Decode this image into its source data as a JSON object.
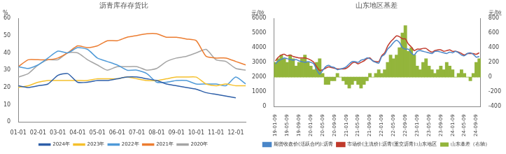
{
  "chart_data": [
    {
      "type": "line",
      "title": "沥青库存存货比",
      "ylabel": "%",
      "categories": [
        "01-01",
        null,
        "02-01",
        null,
        "03-01",
        null,
        "04-01",
        null,
        "05-01",
        null,
        "06-01",
        null,
        "07-01",
        null,
        "08-01",
        null,
        "09-01",
        null,
        "10-01",
        null,
        "11-01",
        null,
        "12-01",
        null
      ],
      "ylim": [
        0,
        60
      ],
      "yticks": [
        0,
        10,
        20,
        30,
        40,
        50,
        60
      ],
      "grid": false,
      "legend": "bottom",
      "series": [
        {
          "name": "2024年",
          "color": "#2e5fa8",
          "values": [
            21,
            20,
            21,
            22,
            27,
            28,
            23,
            23,
            24,
            24,
            25,
            26,
            26,
            25,
            24,
            22,
            21,
            20,
            19,
            17,
            16,
            15,
            14,
            null
          ]
        },
        {
          "name": "2023年",
          "color": "#f5c02c",
          "values": [
            20,
            21,
            23,
            24,
            24,
            24,
            24,
            24,
            25,
            25,
            25,
            26,
            25,
            24,
            24,
            25,
            26,
            26,
            26,
            22,
            21,
            22,
            21,
            21
          ]
        },
        {
          "name": "2022年",
          "color": "#4f9ad8",
          "values": [
            32,
            31,
            33,
            37,
            41,
            40,
            43,
            42,
            37,
            35,
            33,
            30,
            30,
            28,
            23,
            23,
            24,
            24,
            22,
            22,
            22,
            21,
            26,
            22
          ]
        },
        {
          "name": "2021年",
          "color": "#ec7d31",
          "values": [
            32,
            36,
            36,
            36,
            37,
            40,
            44,
            43,
            44,
            47,
            47,
            49,
            50,
            51,
            51,
            49,
            49,
            48,
            47,
            38,
            37,
            37,
            35,
            33
          ]
        },
        {
          "name": "2020年",
          "color": "#a5a5a5",
          "values": [
            26,
            28,
            33,
            36,
            36,
            40,
            40,
            36,
            33,
            30,
            32,
            32,
            32,
            30,
            31,
            35,
            37,
            38,
            40,
            42,
            36,
            35,
            31,
            30
          ]
        }
      ]
    },
    {
      "type": "bar",
      "title": "山东地区基差",
      "ylabel": "元/吨",
      "y2label": "元/吨",
      "categories": [
        "19-01-09",
        null,
        null,
        null,
        "19-05-09",
        null,
        null,
        null,
        "19-09-09",
        null,
        null,
        null,
        "20-01-09",
        null,
        null,
        null,
        "20-05-09",
        null,
        null,
        null,
        "20-09-09",
        null,
        null,
        null,
        "21-01-09",
        null,
        null,
        null,
        "21-05-09",
        null,
        null,
        null,
        "21-09-09",
        null,
        null,
        null,
        "22-01-09",
        null,
        null,
        null,
        "22-05-09",
        null,
        null,
        null,
        "22-09-09",
        null,
        null,
        null,
        "23-01-09",
        null,
        null,
        null,
        "23-05-09",
        null,
        null,
        null,
        "23-09-09",
        null,
        null,
        null,
        "24-01-09",
        null,
        null,
        null,
        "24-05-09",
        null,
        null,
        null,
        "24-09-09",
        null
      ],
      "ylim": [
        0,
        6000
      ],
      "yticks": [
        0,
        1000,
        2000,
        3000,
        4000,
        5000,
        6000
      ],
      "y2lim": [
        -400,
        800
      ],
      "y2ticks": [
        -400,
        -200,
        0,
        200,
        400,
        600,
        800
      ],
      "grid": false,
      "legend": "bottom",
      "series": [
        {
          "name": "山东基差（右轴）",
          "type": "bar",
          "axis": "y2",
          "color": "#93b53b",
          "values": [
            200,
            250,
            300,
            250,
            200,
            300,
            250,
            150,
            200,
            250,
            300,
            200,
            150,
            100,
            200,
            250,
            50,
            -100,
            -100,
            -50,
            -50,
            50,
            0,
            -50,
            -100,
            -150,
            -100,
            -50,
            -100,
            -150,
            -100,
            -50,
            50,
            0,
            50,
            100,
            50,
            100,
            200,
            300,
            250,
            300,
            400,
            600,
            700,
            350,
            400,
            300,
            150,
            100,
            200,
            250,
            150,
            100,
            50,
            100,
            150,
            100,
            200,
            150,
            100,
            0,
            50,
            100,
            50,
            0,
            -50,
            50,
            200,
            250
          ]
        },
        {
          "name": "期货收盘价(活跃合约):沥青",
          "type": "line",
          "color": "#4a86c8",
          "values": [
            2900,
            3100,
            3200,
            3300,
            3250,
            3200,
            3150,
            3200,
            3100,
            3050,
            3000,
            3050,
            3000,
            2900,
            2500,
            2200,
            2450,
            2700,
            2800,
            2700,
            2650,
            2500,
            2550,
            2600,
            2700,
            2900,
            3050,
            3050,
            3000,
            3150,
            3200,
            3300,
            3250,
            3100,
            3000,
            2950,
            3400,
            3550,
            3900,
            4100,
            4350,
            4500,
            4350,
            4000,
            3900,
            3900,
            3650,
            3500,
            3750,
            3800,
            3750,
            3700,
            3650,
            3600,
            3750,
            3750,
            3700,
            3650,
            3600,
            3700,
            3650,
            3750,
            3650,
            3500,
            3450,
            3600,
            3650,
            3550,
            3350,
            3400
          ]
        },
        {
          "name": "市场价(主流价):沥青(重交沥青):山东地区",
          "type": "line",
          "color": "#c0392b",
          "values": [
            3100,
            3350,
            3500,
            3550,
            3450,
            3500,
            3400,
            3350,
            3300,
            3300,
            3300,
            3250,
            3150,
            3000,
            2700,
            2450,
            2500,
            2600,
            2700,
            2650,
            2600,
            2550,
            2550,
            2550,
            2600,
            2750,
            2950,
            3000,
            2900,
            3000,
            3100,
            3250,
            3300,
            3100,
            3050,
            3050,
            3450,
            3650,
            4100,
            4400,
            4600,
            4800,
            4750,
            4600,
            4600,
            4250,
            4050,
            3800,
            3900,
            3900,
            3950,
            3950,
            3800,
            3700,
            3800,
            3850,
            3850,
            3750,
            3800,
            3850,
            3750,
            3750,
            3700,
            3600,
            3500,
            3600,
            3600,
            3600,
            3550,
            3650
          ]
        }
      ]
    }
  ]
}
